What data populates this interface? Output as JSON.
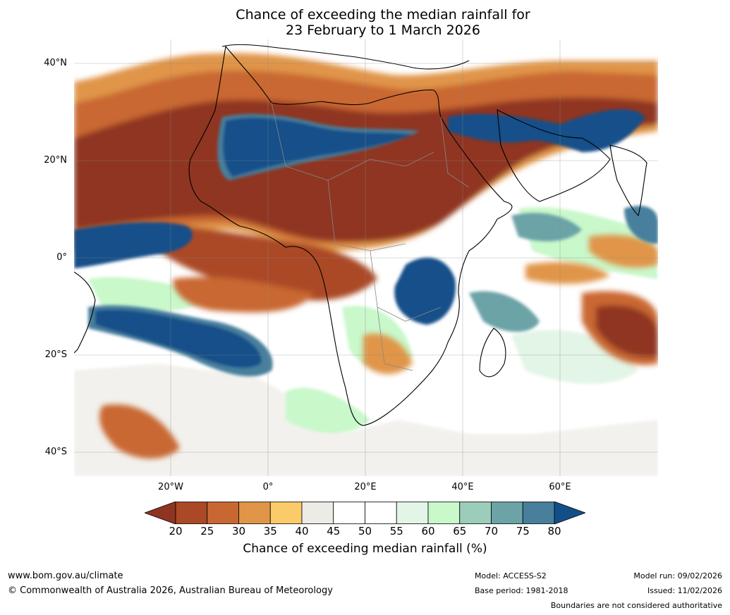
{
  "title_line1": "Chance of exceeding the median rainfall for",
  "title_line2": "23 February to 1 March 2026",
  "lat_labels": [
    "40°N",
    "20°N",
    "0°",
    "20°S",
    "40°S"
  ],
  "lon_labels": [
    "20°W",
    "0°",
    "20°E",
    "40°E",
    "60°E"
  ],
  "colorbar": {
    "ticks": [
      "20",
      "25",
      "30",
      "35",
      "40",
      "45",
      "50",
      "55",
      "60",
      "65",
      "70",
      "75",
      "80"
    ],
    "colors": [
      "#8f3420",
      "#ab4826",
      "#c96733",
      "#e09548",
      "#fbcb6a",
      "#ecebe6",
      "#ffffff",
      "#ffffff",
      "#e3f5e6",
      "#c9f8cb",
      "#9bcdba",
      "#6ca3a7",
      "#477f9d",
      "#124f89"
    ],
    "label": "Chance of exceeding median rainfall (%)"
  },
  "footer": {
    "website": "www.bom.gov.au/climate",
    "copyright": "© Commonwealth of Australia 2026, Australian Bureau of Meteorology",
    "model": "Model: ACCESS-S2",
    "base_period": "Base period: 1981-2018",
    "model_run": "Model run: 09/02/2026",
    "issued": "Issued: 11/02/2026",
    "disclaimer": "Boundaries are not considered authoritative"
  },
  "colors": {
    "dark_brown": "#8f3420",
    "brown": "#ab4826",
    "orange": "#c96733",
    "light_orange": "#e09548",
    "yellow": "#fbcb6a",
    "grey": "#ecebe6",
    "light_green": "#c9f8cb",
    "teal": "#6ca3a7",
    "dark_blue": "#124f89"
  }
}
